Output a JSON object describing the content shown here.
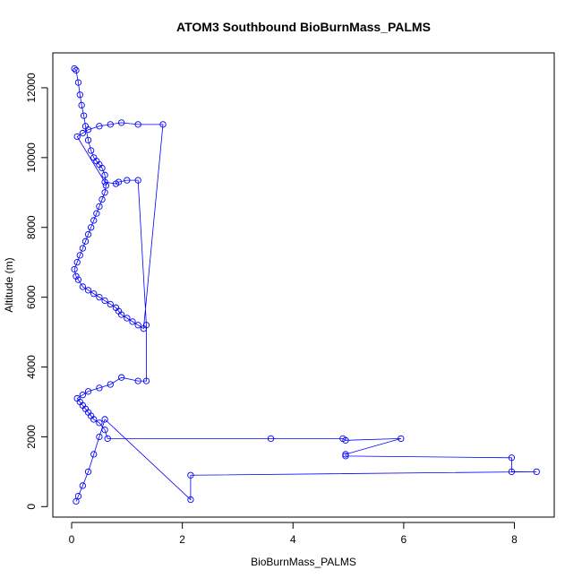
{
  "chart_data": {
    "type": "scatter",
    "title": "ATOM3 Southbound BioBurnMass_PALMS",
    "xlabel": "BioBurnMass_PALMS",
    "ylabel": "Altitude (m)",
    "xlim": [
      -0.34,
      8.72
    ],
    "ylim": [
      -300,
      13000
    ],
    "x_ticks": [
      0,
      2,
      4,
      6,
      8
    ],
    "y_ticks": [
      0,
      2000,
      4000,
      6000,
      8000,
      10000,
      12000
    ],
    "marker": "open-circle",
    "connected": true,
    "grid": false,
    "legend": "none",
    "series": [
      {
        "color": "#0000ff",
        "x": [
          0.05,
          0.08,
          0.12,
          0.15,
          0.18,
          0.22,
          0.25,
          0.3,
          0.35,
          0.4,
          0.45,
          0.5,
          0.55,
          0.6,
          0.62,
          0.6,
          0.55,
          0.5,
          0.45,
          0.4,
          0.35,
          0.3,
          0.25,
          0.2,
          0.15,
          0.1,
          0.05,
          0.08,
          0.12,
          0.2,
          0.3,
          0.4,
          0.5,
          0.6,
          0.7,
          0.8,
          0.85,
          0.9,
          1.0,
          1.1,
          1.2,
          1.3,
          1.65,
          1.2,
          0.9,
          0.7,
          0.5,
          0.3,
          0.2,
          0.1,
          0.6,
          0.8,
          0.85,
          1.0,
          1.2,
          1.35,
          1.35,
          1.2,
          0.9,
          0.7,
          0.5,
          0.3,
          0.2,
          0.1,
          0.15,
          0.2,
          0.25,
          0.3,
          0.35,
          0.4,
          0.5,
          0.6,
          0.65,
          3.6,
          4.9,
          4.95,
          5.95,
          4.95,
          4.95,
          7.95,
          7.95,
          8.4,
          2.15,
          2.15,
          0.6,
          0.5,
          0.4,
          0.3,
          0.2,
          0.12,
          0.08
        ],
        "y": [
          12550,
          12500,
          12150,
          11800,
          11500,
          11200,
          10900,
          10500,
          10200,
          10000,
          9900,
          9800,
          9700,
          9500,
          9200,
          9000,
          8800,
          8600,
          8400,
          8200,
          8000,
          7800,
          7600,
          7400,
          7200,
          7000,
          6800,
          6600,
          6500,
          6300,
          6200,
          6100,
          6000,
          5900,
          5800,
          5700,
          5600,
          5500,
          5400,
          5300,
          5200,
          5100,
          10950,
          10950,
          11000,
          10950,
          10900,
          10800,
          10700,
          10600,
          9300,
          9250,
          9300,
          9350,
          9350,
          5200,
          3600,
          3600,
          3700,
          3500,
          3400,
          3300,
          3200,
          3100,
          3000,
          2900,
          2800,
          2700,
          2600,
          2500,
          2400,
          2200,
          1950,
          1950,
          1950,
          1900,
          1950,
          1500,
          1450,
          1400,
          1000,
          1000,
          900,
          200,
          2500,
          2000,
          1500,
          1000,
          600,
          300,
          150
        ]
      }
    ]
  }
}
